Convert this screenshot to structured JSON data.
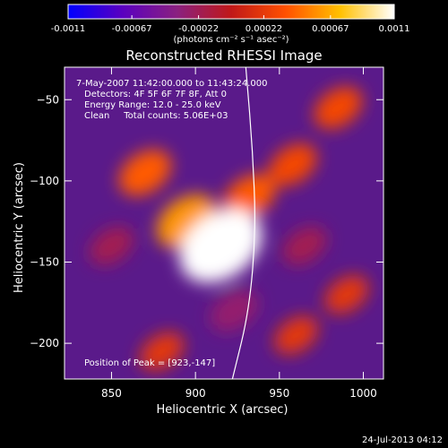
{
  "chart_data": {
    "type": "heatmap",
    "title": "Reconstructed RHESSI Image",
    "xlabel": "Heliocentric X (arcsec)",
    "ylabel": "Heliocentric Y (arcsec)",
    "xlim": [
      822,
      1012
    ],
    "ylim": [
      -222,
      -30
    ],
    "xticks": [
      850,
      900,
      950,
      1000
    ],
    "yticks": [
      -50,
      -100,
      -150,
      -200
    ],
    "colorbar": {
      "ticks": [
        "-0.0011",
        "-0.00067",
        "-0.00022",
        "0.00022",
        "0.00067",
        "0.0011"
      ],
      "tick_values": [
        -0.0011,
        -0.00067,
        -0.00022,
        0.00022,
        0.00067,
        0.0011
      ],
      "range": [
        -0.0011,
        0.0011
      ],
      "unit_label": "(photons cm⁻² s⁻¹ asec⁻²)",
      "colors": [
        "#0000ff",
        "#5a00c0",
        "#8a2080",
        "#c01818",
        "#ff5000",
        "#ffc000",
        "#ffffff"
      ]
    },
    "annotations": [
      "7-May-2007 11:42:00.000 to 11:43:24.000",
      "Detectors: 4F 5F 6F 7F 8F, Att 0",
      "Energy Range: 12.0 - 25.0 keV",
      "Clean     Total counts: 5.06E+03"
    ],
    "peak_label": "Position of Peak = [923,-147]",
    "peak": {
      "x": 923,
      "y": -147,
      "value": 0.0011
    },
    "limb_curve": [
      [
        930,
        -30
      ],
      [
        934,
        -80
      ],
      [
        936,
        -130
      ],
      [
        932,
        -180
      ],
      [
        922,
        -222
      ]
    ],
    "features": [
      {
        "x": 915,
        "y": -140,
        "v": 0.0011
      },
      {
        "x": 895,
        "y": -125,
        "v": 0.0006
      },
      {
        "x": 932,
        "y": -110,
        "v": 0.0004
      },
      {
        "x": 870,
        "y": -95,
        "v": 0.0004
      },
      {
        "x": 958,
        "y": -90,
        "v": 0.0003
      },
      {
        "x": 985,
        "y": -55,
        "v": 0.0003
      },
      {
        "x": 880,
        "y": -205,
        "v": 0.0002
      },
      {
        "x": 960,
        "y": -195,
        "v": 0.0002
      },
      {
        "x": 990,
        "y": -170,
        "v": 0.0002
      },
      {
        "x": 850,
        "y": -140,
        "v": -0.0002
      },
      {
        "x": 965,
        "y": -140,
        "v": -0.0002
      },
      {
        "x": 923,
        "y": -180,
        "v": -0.0003
      }
    ]
  },
  "footer": {
    "date": "24-Jul-2013 04:12"
  }
}
